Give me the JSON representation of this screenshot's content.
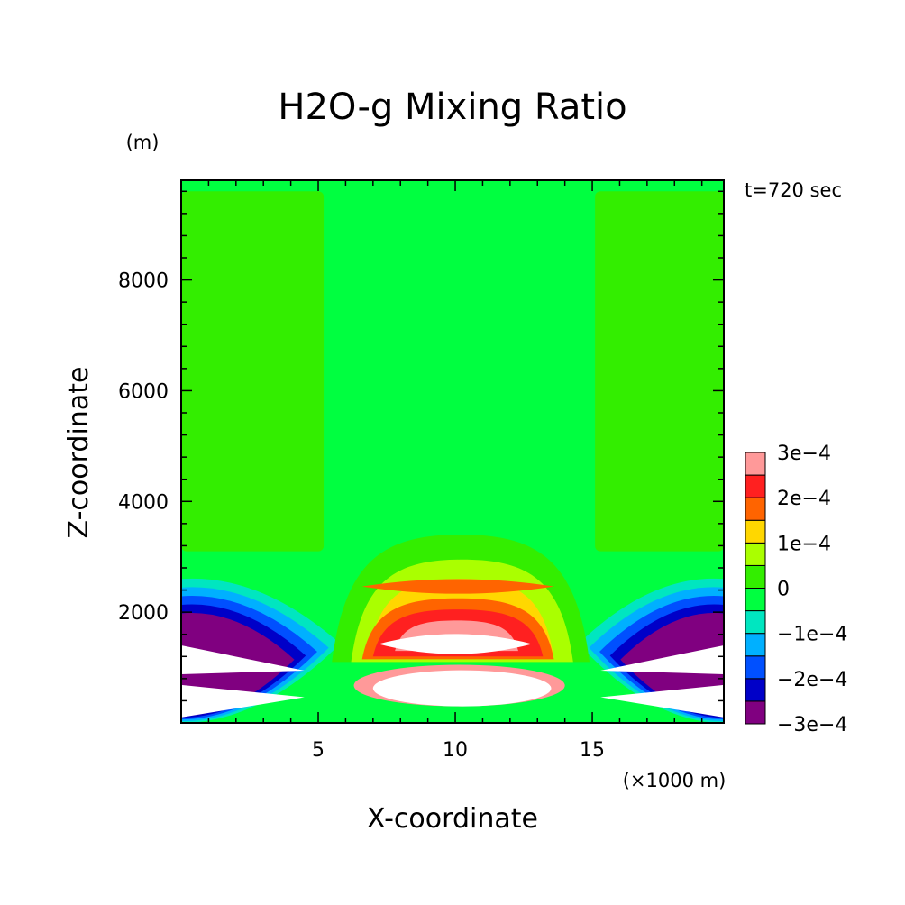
{
  "chart_data": {
    "type": "contour",
    "title": "H2O-g Mixing Ratio",
    "xlabel": "X-coordinate",
    "ylabel": "Z-coordinate",
    "x_unit_label": "(×1000 m)",
    "y_unit_label": "(m)",
    "time_label": "t=720 sec",
    "xlim": [
      0,
      19.8
    ],
    "ylim": [
      0,
      9800
    ],
    "x_ticks": [
      5,
      10,
      15
    ],
    "x_tick_labels": [
      "5",
      "10",
      "15"
    ],
    "y_ticks": [
      2000,
      4000,
      6000,
      8000
    ],
    "y_tick_labels": [
      "2000",
      "4000",
      "6000",
      "8000"
    ],
    "colorbar": {
      "levels": [
        -0.0003,
        -0.00025,
        -0.0002,
        -0.00015,
        -0.0001,
        -5e-05,
        0,
        5e-05,
        0.0001,
        0.00015,
        0.0002,
        0.00025,
        0.0003
      ],
      "labels": [
        "3e−4",
        "2e−4",
        "1e−4",
        "0",
        "−1e−4",
        "−2e−4",
        "−3e−4"
      ],
      "colors": [
        "#800080",
        "#0000c8",
        "#0050ff",
        "#00b0ff",
        "#00e6c0",
        "#00ff40",
        "#33ee00",
        "#aaff00",
        "#ffd700",
        "#ff6400",
        "#ff2020",
        "#ff9999"
      ]
    },
    "background_color": "#00ff40",
    "regions": [
      {
        "name": "upper-left-band",
        "color": "#33ee00",
        "x_range": [
          0,
          5.2
        ],
        "z_range": [
          3100,
          9600
        ]
      },
      {
        "name": "upper-right-band",
        "color": "#33ee00",
        "x_range": [
          15.1,
          19.8
        ],
        "z_range": [
          3100,
          9600
        ]
      },
      {
        "name": "central-plume",
        "color": "#33ee00",
        "x_range": [
          5.5,
          14.9
        ],
        "z_range": [
          1100,
          3400
        ]
      },
      {
        "name": "central-plume-yellowgreen",
        "color": "#aaff00",
        "x_range": [
          6.2,
          14.3
        ],
        "z_range": [
          1100,
          2950
        ]
      },
      {
        "name": "central-plume-yellow",
        "color": "#ffd700",
        "x_range": [
          6.8,
          13.6
        ],
        "z_range": [
          1150,
          2600
        ]
      },
      {
        "name": "top-orange-lens",
        "color": "#ff6400",
        "x_range": [
          6.6,
          13.6
        ],
        "z_range": [
          2300,
          2630
        ]
      },
      {
        "name": "central-plume-orange",
        "color": "#ff6400",
        "x_range": [
          6.6,
          13.6
        ],
        "z_range": [
          1150,
          2250
        ]
      },
      {
        "name": "central-plume-red",
        "color": "#ff2020",
        "x_range": [
          7.0,
          13.2
        ],
        "z_range": [
          1200,
          2050
        ]
      },
      {
        "name": "central-plume-pink",
        "color": "#ff9999",
        "x_range": [
          7.8,
          12.3
        ],
        "z_range": [
          1300,
          1850
        ]
      },
      {
        "name": "central-plume-saturated",
        "color": "#ffffff",
        "x_range": [
          7.2,
          12.8
        ],
        "z_range": [
          1200,
          1650
        ]
      },
      {
        "name": "lower-core",
        "color": "#ff9999",
        "x_range": [
          6.3,
          14.0
        ],
        "z_range": [
          300,
          1050
        ]
      },
      {
        "name": "lower-core-saturated",
        "color": "#ffffff",
        "x_range": [
          7.0,
          13.5
        ],
        "z_range": [
          300,
          950
        ]
      },
      {
        "name": "left-negative-lobes",
        "color": "#0000c8",
        "x_range": [
          0,
          5.8
        ],
        "z_range": [
          0,
          2600
        ]
      },
      {
        "name": "right-negative-lobes",
        "color": "#0000c8",
        "x_range": [
          14.5,
          19.8
        ],
        "z_range": [
          0,
          2600
        ]
      },
      {
        "name": "left-saturated-negative",
        "color": "#ffffff",
        "x_range": [
          0,
          4.5
        ],
        "z_range": [
          100,
          1400
        ]
      },
      {
        "name": "right-saturated-negative",
        "color": "#ffffff",
        "x_range": [
          15.3,
          19.8
        ],
        "z_range": [
          100,
          1400
        ]
      }
    ]
  }
}
